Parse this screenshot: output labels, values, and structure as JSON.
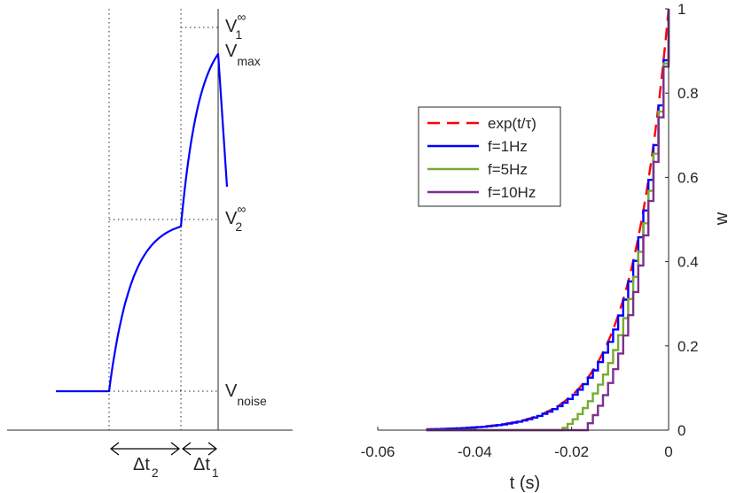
{
  "chart_data": [
    {
      "type": "line",
      "title": "",
      "description_labels": {
        "v_inf_1": {
          "main": "V",
          "sup": "∞",
          "sub": "1"
        },
        "v_max": {
          "main": "V",
          "sub": "max"
        },
        "v_inf_2": {
          "main": "V",
          "sup": "∞",
          "sub": "2"
        },
        "v_noise": {
          "main": "V",
          "sub": "noise"
        },
        "dt2": {
          "main": "Δt",
          "sub": "2"
        },
        "dt1": {
          "main": "Δt",
          "sub": "1"
        }
      },
      "levels": {
        "v_noise": 0.1,
        "v_inf_2": 0.5,
        "v_max": 0.9,
        "v_inf_1": 0.96
      },
      "axes": false,
      "color": "#0000ff"
    },
    {
      "type": "line",
      "xlabel": "t (s)",
      "ylabel": "w",
      "xlim": [
        -0.06,
        0
      ],
      "ylim": [
        0,
        1
      ],
      "xticks": [
        "-0.06",
        "-0.04",
        "-0.02",
        "0"
      ],
      "yticks": [
        "0",
        "0.2",
        "0.4",
        "0.6",
        "0.8",
        "1"
      ],
      "tau": 0.008,
      "t_start": -0.05,
      "legend_position": "top-left",
      "series": [
        {
          "name": "exp(t/τ)",
          "color": "#ff0000",
          "style": "dashed",
          "kind": "exponential"
        },
        {
          "name": "f=1Hz",
          "color": "#0000ff",
          "style": "solid",
          "kind": "staircase",
          "threshold": 0.0
        },
        {
          "name": "f=5Hz",
          "color": "#77ac30",
          "style": "solid",
          "kind": "staircase",
          "threshold": 0.06
        },
        {
          "name": "f=10Hz",
          "color": "#7e2f8e",
          "style": "solid",
          "kind": "staircase",
          "threshold": 0.11
        }
      ]
    }
  ]
}
